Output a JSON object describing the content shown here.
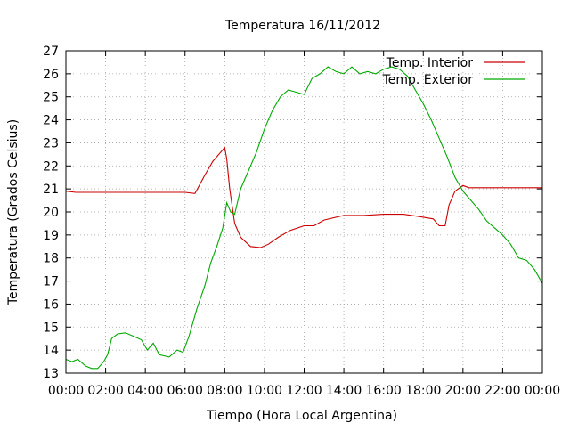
{
  "chart_data": {
    "type": "line",
    "title": "Temperatura 16/11/2012",
    "xlabel": "Tiempo (Hora Local Argentina)",
    "ylabel": "Temperatura (Grados Celsius)",
    "xlim": [
      0,
      24
    ],
    "ylim": [
      13,
      27
    ],
    "x_ticks": [
      "00:00",
      "02:00",
      "04:00",
      "06:00",
      "08:00",
      "10:00",
      "12:00",
      "14:00",
      "16:00",
      "18:00",
      "20:00",
      "22:00",
      "00:00"
    ],
    "y_ticks": [
      "13",
      "14",
      "15",
      "16",
      "17",
      "18",
      "19",
      "20",
      "21",
      "22",
      "23",
      "24",
      "25",
      "26",
      "27"
    ],
    "grid": true,
    "legend_position": "top-right",
    "series": [
      {
        "name": "Temp. Interior",
        "color": "#cc0000",
        "points": [
          [
            0,
            20.9
          ],
          [
            0.5,
            20.85
          ],
          [
            1,
            20.85
          ],
          [
            1.8,
            20.85
          ],
          [
            2.5,
            20.85
          ],
          [
            3,
            20.85
          ],
          [
            4,
            20.85
          ],
          [
            5,
            20.85
          ],
          [
            6,
            20.85
          ],
          [
            6.5,
            20.8
          ],
          [
            7,
            21.6
          ],
          [
            7.4,
            22.2
          ],
          [
            7.8,
            22.6
          ],
          [
            8.0,
            22.8
          ],
          [
            8.1,
            22.3
          ],
          [
            8.25,
            21.0
          ],
          [
            8.5,
            19.5
          ],
          [
            8.8,
            18.9
          ],
          [
            9.3,
            18.5
          ],
          [
            9.8,
            18.45
          ],
          [
            10.2,
            18.6
          ],
          [
            10.7,
            18.9
          ],
          [
            11.3,
            19.2
          ],
          [
            12,
            19.4
          ],
          [
            12.5,
            19.4
          ],
          [
            13,
            19.65
          ],
          [
            14,
            19.85
          ],
          [
            15,
            19.85
          ],
          [
            16,
            19.9
          ],
          [
            17,
            19.9
          ],
          [
            17.8,
            19.8
          ],
          [
            18.5,
            19.7
          ],
          [
            18.8,
            19.4
          ],
          [
            19.1,
            19.4
          ],
          [
            19.3,
            20.3
          ],
          [
            19.6,
            20.9
          ],
          [
            20,
            21.15
          ],
          [
            20.3,
            21.05
          ],
          [
            21,
            21.05
          ],
          [
            22,
            21.05
          ],
          [
            23,
            21.05
          ],
          [
            24,
            21.05
          ]
        ]
      },
      {
        "name": "Temp. Exterior",
        "color": "#00aa00",
        "points": [
          [
            0,
            13.6
          ],
          [
            0.3,
            13.5
          ],
          [
            0.6,
            13.6
          ],
          [
            1,
            13.3
          ],
          [
            1.3,
            13.2
          ],
          [
            1.6,
            13.2
          ],
          [
            1.9,
            13.5
          ],
          [
            2.1,
            13.8
          ],
          [
            2.3,
            14.5
          ],
          [
            2.6,
            14.7
          ],
          [
            3,
            14.75
          ],
          [
            3.4,
            14.6
          ],
          [
            3.8,
            14.45
          ],
          [
            4.1,
            14.0
          ],
          [
            4.4,
            14.3
          ],
          [
            4.7,
            13.8
          ],
          [
            5.2,
            13.7
          ],
          [
            5.6,
            14.0
          ],
          [
            5.9,
            13.9
          ],
          [
            6.2,
            14.6
          ],
          [
            6.6,
            15.8
          ],
          [
            7.0,
            16.8
          ],
          [
            7.3,
            17.8
          ],
          [
            7.6,
            18.5
          ],
          [
            7.9,
            19.3
          ],
          [
            8.1,
            20.4
          ],
          [
            8.3,
            20.0
          ],
          [
            8.5,
            19.9
          ],
          [
            8.8,
            21.0
          ],
          [
            9.2,
            21.8
          ],
          [
            9.6,
            22.6
          ],
          [
            10.0,
            23.6
          ],
          [
            10.4,
            24.4
          ],
          [
            10.8,
            25.0
          ],
          [
            11.2,
            25.3
          ],
          [
            11.6,
            25.2
          ],
          [
            12.0,
            25.1
          ],
          [
            12.4,
            25.8
          ],
          [
            12.8,
            26.0
          ],
          [
            13.2,
            26.3
          ],
          [
            13.6,
            26.1
          ],
          [
            14.0,
            26.0
          ],
          [
            14.4,
            26.3
          ],
          [
            14.8,
            26.0
          ],
          [
            15.2,
            26.1
          ],
          [
            15.6,
            26.0
          ],
          [
            16.0,
            26.2
          ],
          [
            16.4,
            26.3
          ],
          [
            16.8,
            26.2
          ],
          [
            17.2,
            25.9
          ],
          [
            17.6,
            25.3
          ],
          [
            18.0,
            24.7
          ],
          [
            18.4,
            24.0
          ],
          [
            18.8,
            23.2
          ],
          [
            19.2,
            22.4
          ],
          [
            19.6,
            21.5
          ],
          [
            20.0,
            20.9
          ],
          [
            20.4,
            20.5
          ],
          [
            20.8,
            20.1
          ],
          [
            21.2,
            19.6
          ],
          [
            21.6,
            19.3
          ],
          [
            22.0,
            19.0
          ],
          [
            22.4,
            18.6
          ],
          [
            22.8,
            18.0
          ],
          [
            23.2,
            17.9
          ],
          [
            23.6,
            17.5
          ],
          [
            24.0,
            16.9
          ]
        ]
      }
    ]
  }
}
